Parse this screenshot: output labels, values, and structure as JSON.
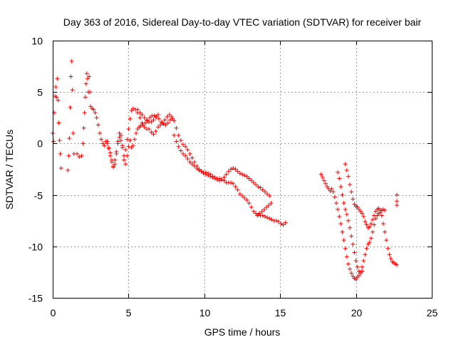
{
  "chart_data": {
    "type": "scatter",
    "title": "Day 363 of 2016, Sidereal Day-to-day VTEC variation (SDTVAR) for receiver bair",
    "xlabel": "GPS time / hours",
    "ylabel": "SDTVAR / TECUs",
    "xlim": [
      0,
      25
    ],
    "ylim": [
      -15,
      10
    ],
    "xticks": [
      0,
      5,
      10,
      15,
      20,
      25
    ],
    "yticks": [
      -15,
      -10,
      -5,
      0,
      5,
      10
    ],
    "grid": true,
    "marker": "+",
    "marker_color": "#ff0000",
    "segments": [
      [
        [
          0.0,
          1.0
        ],
        [
          0.05,
          0.2
        ],
        [
          0.1,
          3.0
        ],
        [
          0.15,
          4.6
        ],
        [
          0.2,
          5.5
        ],
        [
          0.25,
          4.5
        ],
        [
          0.3,
          6.3
        ],
        [
          0.35,
          4.2
        ],
        [
          0.4,
          2.0
        ],
        [
          0.45,
          0.3
        ],
        [
          0.5,
          -1.0
        ],
        [
          0.55,
          -2.4
        ]
      ],
      [
        [
          1.0,
          -2.6
        ],
        [
          1.05,
          -1.2
        ],
        [
          1.1,
          0.5
        ],
        [
          1.15,
          3.5
        ],
        [
          1.2,
          6.5
        ],
        [
          1.25,
          8.0
        ],
        [
          1.3,
          5.2
        ],
        [
          1.35,
          1.0
        ],
        [
          1.4,
          -1.0
        ]
      ],
      [
        [
          1.6,
          -1.0
        ],
        [
          1.75,
          -1.3
        ],
        [
          1.9,
          -1.2
        ],
        [
          2.0,
          0.0
        ],
        [
          2.05,
          1.5
        ],
        [
          2.1,
          3.0
        ],
        [
          2.15,
          4.5
        ],
        [
          2.2,
          5.8
        ],
        [
          2.25,
          6.8
        ],
        [
          2.3,
          6.3
        ],
        [
          2.35,
          5.0
        ],
        [
          2.4,
          6.5
        ],
        [
          2.45,
          5.0
        ],
        [
          2.5,
          3.6
        ],
        [
          2.6,
          3.4
        ],
        [
          2.7,
          3.3
        ],
        [
          2.8,
          3.0
        ],
        [
          2.9,
          2.5
        ],
        [
          3.0,
          1.8
        ],
        [
          3.1,
          1.0
        ],
        [
          3.2,
          0.4
        ],
        [
          3.3,
          0.0
        ],
        [
          3.4,
          -0.2
        ],
        [
          3.5,
          0.2
        ],
        [
          3.6,
          0.0
        ],
        [
          3.7,
          -0.4
        ],
        [
          3.8,
          -0.9
        ],
        [
          3.9,
          -1.6
        ],
        [
          4.0,
          -2.2
        ],
        [
          4.1,
          -2.0
        ],
        [
          4.2,
          -1.0
        ],
        [
          4.3,
          0.0
        ],
        [
          4.4,
          0.6
        ],
        [
          4.5,
          0.3
        ],
        [
          4.6,
          -0.4
        ],
        [
          4.7,
          -1.2
        ],
        [
          4.8,
          -0.6
        ],
        [
          4.9,
          0.4
        ],
        [
          5.0,
          1.4
        ],
        [
          5.1,
          2.4
        ],
        [
          5.2,
          3.2
        ],
        [
          5.3,
          3.4
        ],
        [
          5.45,
          3.3
        ],
        [
          5.6,
          3.0
        ],
        [
          5.75,
          2.5
        ],
        [
          5.9,
          2.0
        ],
        [
          6.05,
          1.6
        ],
        [
          6.2,
          1.4
        ],
        [
          6.35,
          1.4
        ],
        [
          6.5,
          1.1
        ],
        [
          6.65,
          0.9
        ],
        [
          6.8,
          1.2
        ],
        [
          6.95,
          1.6
        ],
        [
          7.1,
          1.8
        ],
        [
          7.25,
          2.0
        ],
        [
          7.4,
          2.3
        ],
        [
          7.55,
          2.6
        ],
        [
          7.7,
          2.8
        ],
        [
          7.85,
          2.6
        ],
        [
          8.0,
          2.2
        ],
        [
          8.15,
          1.5
        ],
        [
          8.3,
          0.8
        ],
        [
          8.45,
          0.3
        ],
        [
          8.6,
          -0.1
        ],
        [
          8.75,
          -0.3
        ],
        [
          8.9,
          -0.6
        ],
        [
          9.05,
          -1.0
        ],
        [
          9.2,
          -1.4
        ],
        [
          9.35,
          -1.8
        ],
        [
          9.5,
          -2.2
        ],
        [
          9.65,
          -2.5
        ],
        [
          9.8,
          -2.7
        ],
        [
          9.95,
          -2.8
        ],
        [
          10.1,
          -2.8
        ],
        [
          10.25,
          -2.9
        ],
        [
          10.4,
          -3.0
        ],
        [
          10.55,
          -3.2
        ],
        [
          10.7,
          -3.3
        ],
        [
          10.85,
          -3.4
        ],
        [
          11.0,
          -3.4
        ],
        [
          11.15,
          -3.5
        ],
        [
          11.3,
          -3.6
        ],
        [
          11.45,
          -3.8
        ],
        [
          11.6,
          -3.8
        ],
        [
          11.75,
          -3.8
        ],
        [
          11.9,
          -3.9
        ],
        [
          12.05,
          -4.2
        ],
        [
          12.2,
          -4.5
        ],
        [
          12.35,
          -4.9
        ],
        [
          12.5,
          -5.1
        ],
        [
          12.65,
          -5.3
        ],
        [
          12.8,
          -5.5
        ],
        [
          12.95,
          -5.8
        ],
        [
          13.1,
          -6.2
        ],
        [
          13.25,
          -6.6
        ],
        [
          13.4,
          -6.8
        ],
        [
          13.55,
          -6.9
        ],
        [
          13.7,
          -7.0
        ],
        [
          13.85,
          -7.0
        ],
        [
          14.0,
          -7.1
        ],
        [
          14.15,
          -7.2
        ],
        [
          14.3,
          -7.3
        ],
        [
          14.45,
          -7.4
        ],
        [
          14.6,
          -7.5
        ],
        [
          14.75,
          -7.5
        ],
        [
          14.9,
          -7.6
        ],
        [
          15.05,
          -7.8
        ],
        [
          15.2,
          -7.9
        ],
        [
          15.35,
          -7.7
        ]
      ],
      [
        [
          3.6,
          0.2
        ],
        [
          3.7,
          -0.5
        ],
        [
          3.8,
          -1.2
        ],
        [
          3.9,
          -1.8
        ],
        [
          4.0,
          -2.3
        ],
        [
          4.1,
          -1.6
        ],
        [
          4.2,
          -0.8
        ],
        [
          4.3,
          0.2
        ],
        [
          4.4,
          1.0
        ],
        [
          4.5,
          0.8
        ],
        [
          4.6,
          -0.2
        ],
        [
          4.7,
          -1.6
        ],
        [
          4.8,
          -2.0
        ],
        [
          4.9,
          -1.2
        ],
        [
          5.0,
          -0.3
        ],
        [
          5.1,
          0.3
        ],
        [
          5.2,
          -0.4
        ],
        [
          5.3,
          -0.2
        ],
        [
          5.4,
          0.4
        ],
        [
          5.5,
          1.0
        ],
        [
          5.6,
          1.4
        ],
        [
          5.7,
          1.6
        ],
        [
          5.8,
          1.7
        ],
        [
          5.95,
          1.8
        ],
        [
          6.1,
          2.0
        ],
        [
          6.25,
          2.2
        ],
        [
          6.4,
          2.5
        ],
        [
          6.55,
          2.7
        ],
        [
          6.7,
          2.7
        ],
        [
          6.85,
          2.6
        ],
        [
          7.0,
          2.4
        ],
        [
          7.15,
          2.1
        ],
        [
          7.3,
          1.9
        ],
        [
          7.45,
          1.8
        ],
        [
          7.6,
          2.0
        ],
        [
          7.75,
          2.3
        ],
        [
          7.9,
          2.4
        ]
      ],
      [
        [
          5.6,
          3.3
        ],
        [
          5.75,
          3.0
        ],
        [
          5.9,
          2.8
        ],
        [
          6.05,
          2.5
        ],
        [
          6.2,
          2.3
        ],
        [
          6.35,
          2.1
        ],
        [
          6.5,
          2.1
        ],
        [
          6.65,
          2.3
        ],
        [
          6.8,
          2.6
        ],
        [
          6.95,
          2.8
        ]
      ],
      [
        [
          8.0,
          0.8
        ],
        [
          8.15,
          0.2
        ],
        [
          8.3,
          -0.3
        ],
        [
          8.45,
          -0.7
        ],
        [
          8.6,
          -1.0
        ],
        [
          8.75,
          -1.2
        ],
        [
          8.9,
          -1.5
        ],
        [
          9.05,
          -1.8
        ],
        [
          9.2,
          -2.0
        ],
        [
          9.35,
          -2.2
        ],
        [
          9.5,
          -2.4
        ],
        [
          9.65,
          -2.6
        ],
        [
          9.8,
          -2.7
        ],
        [
          9.95,
          -2.9
        ],
        [
          10.1,
          -3.0
        ],
        [
          10.25,
          -3.1
        ],
        [
          10.4,
          -3.2
        ],
        [
          10.55,
          -3.3
        ],
        [
          10.7,
          -3.4
        ],
        [
          10.85,
          -3.5
        ],
        [
          11.0,
          -3.6
        ],
        [
          11.15,
          -3.5
        ],
        [
          11.3,
          -3.3
        ],
        [
          11.45,
          -3.0
        ],
        [
          11.6,
          -2.7
        ],
        [
          11.75,
          -2.5
        ],
        [
          11.9,
          -2.4
        ],
        [
          12.05,
          -2.5
        ],
        [
          12.2,
          -2.7
        ],
        [
          12.35,
          -2.9
        ],
        [
          12.5,
          -3.0
        ],
        [
          12.65,
          -3.1
        ],
        [
          12.8,
          -3.2
        ],
        [
          12.95,
          -3.4
        ],
        [
          13.1,
          -3.6
        ],
        [
          13.25,
          -3.8
        ],
        [
          13.4,
          -4.0
        ],
        [
          13.55,
          -4.2
        ],
        [
          13.7,
          -4.3
        ],
        [
          13.85,
          -4.5
        ],
        [
          14.0,
          -4.7
        ],
        [
          14.15,
          -4.9
        ],
        [
          14.3,
          -5.1
        ]
      ],
      [
        [
          13.5,
          -7.0
        ],
        [
          13.65,
          -6.8
        ],
        [
          13.8,
          -6.6
        ],
        [
          13.95,
          -6.4
        ],
        [
          14.1,
          -6.2
        ],
        [
          14.25,
          -6.0
        ],
        [
          14.4,
          -5.8
        ]
      ],
      [
        [
          17.7,
          -3.0
        ],
        [
          17.8,
          -3.3
        ],
        [
          17.9,
          -3.6
        ],
        [
          18.0,
          -3.9
        ],
        [
          18.1,
          -4.2
        ],
        [
          18.2,
          -4.4
        ],
        [
          18.3,
          -4.6
        ],
        [
          18.4,
          -4.4
        ],
        [
          18.5,
          -4.7
        ],
        [
          18.6,
          -5.2
        ],
        [
          18.7,
          -5.8
        ],
        [
          18.8,
          -6.4
        ],
        [
          18.9,
          -7.1
        ],
        [
          19.0,
          -7.8
        ],
        [
          19.1,
          -8.6
        ],
        [
          19.2,
          -9.4
        ],
        [
          19.3,
          -10.2
        ],
        [
          19.4,
          -11.0
        ],
        [
          19.5,
          -11.7
        ],
        [
          19.6,
          -12.2
        ],
        [
          19.7,
          -12.6
        ],
        [
          19.8,
          -12.9
        ],
        [
          19.9,
          -13.1
        ],
        [
          20.0,
          -13.2
        ],
        [
          20.1,
          -13.0
        ],
        [
          20.2,
          -12.8
        ],
        [
          20.3,
          -12.5
        ],
        [
          20.4,
          -12.0
        ],
        [
          20.5,
          -11.4
        ],
        [
          20.6,
          -10.8
        ],
        [
          20.7,
          -10.2
        ],
        [
          20.8,
          -9.8
        ],
        [
          20.9,
          -9.6
        ],
        [
          21.0,
          -9.2
        ],
        [
          21.1,
          -8.6
        ],
        [
          21.2,
          -7.9
        ],
        [
          21.3,
          -7.3
        ],
        [
          21.4,
          -7.0
        ],
        [
          21.5,
          -6.8
        ],
        [
          21.6,
          -6.7
        ],
        [
          21.7,
          -6.5
        ],
        [
          21.8,
          -6.4
        ],
        [
          21.9,
          -6.5
        ]
      ],
      [
        [
          18.8,
          -2.8
        ],
        [
          18.9,
          -3.4
        ],
        [
          19.0,
          -4.2
        ],
        [
          19.1,
          -5.0
        ],
        [
          19.2,
          -5.8
        ],
        [
          19.3,
          -6.4
        ],
        [
          19.4,
          -6.9
        ],
        [
          19.5,
          -7.5
        ],
        [
          19.6,
          -8.2
        ],
        [
          19.7,
          -9.0
        ],
        [
          19.8,
          -9.8
        ],
        [
          19.9,
          -10.6
        ],
        [
          20.0,
          -11.4
        ],
        [
          20.1,
          -12.0
        ],
        [
          20.2,
          -12.4
        ],
        [
          20.3,
          -12.6
        ],
        [
          20.4,
          -12.4
        ]
      ],
      [
        [
          19.3,
          -2.0
        ],
        [
          19.4,
          -2.6
        ],
        [
          19.5,
          -3.2
        ],
        [
          19.6,
          -4.0
        ],
        [
          19.7,
          -4.7
        ],
        [
          19.8,
          -5.4
        ],
        [
          19.9,
          -5.9
        ],
        [
          20.0,
          -6.1
        ],
        [
          20.1,
          -6.2
        ],
        [
          20.2,
          -6.4
        ],
        [
          20.3,
          -6.6
        ],
        [
          20.4,
          -6.8
        ],
        [
          20.5,
          -7.1
        ],
        [
          20.6,
          -7.6
        ],
        [
          20.7,
          -7.9
        ],
        [
          20.8,
          -8.2
        ],
        [
          20.9,
          -8.1
        ],
        [
          21.0,
          -7.8
        ],
        [
          21.1,
          -7.4
        ],
        [
          21.2,
          -7.0
        ],
        [
          21.3,
          -6.6
        ],
        [
          21.4,
          -6.4
        ],
        [
          21.5,
          -6.3
        ],
        [
          21.6,
          -6.5
        ],
        [
          21.7,
          -7.0
        ],
        [
          21.8,
          -7.8
        ],
        [
          21.9,
          -8.6
        ],
        [
          22.0,
          -9.4
        ],
        [
          22.1,
          -10.2
        ],
        [
          22.2,
          -10.8
        ],
        [
          22.3,
          -11.2
        ],
        [
          22.4,
          -11.5
        ],
        [
          22.5,
          -11.6
        ],
        [
          22.6,
          -11.7
        ],
        [
          22.7,
          -11.8
        ]
      ],
      [
        [
          22.7,
          -5.0
        ],
        [
          22.7,
          -5.6
        ],
        [
          22.7,
          -6.0
        ]
      ]
    ]
  }
}
